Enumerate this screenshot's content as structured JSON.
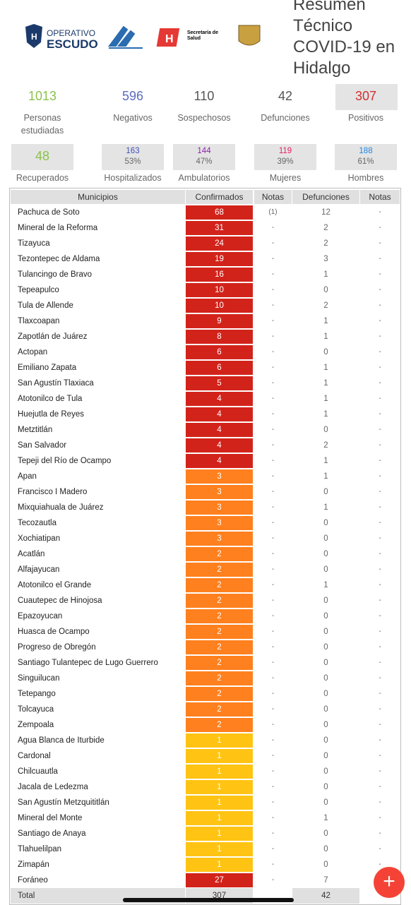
{
  "header": {
    "title_lines": [
      "Resumen",
      "Técnico",
      "COVID-19 en",
      "Hidalgo"
    ],
    "logos": {
      "operativo": "OPERATIVO",
      "escudo": "ESCUDO",
      "secretaria": "Secretaría de",
      "salud": "Salud"
    }
  },
  "summary": [
    {
      "value": "1013",
      "label": "Personas estudiadas",
      "color": "#8bc34a"
    },
    {
      "value": "596",
      "label": "Negativos",
      "color": "#5c6bc0"
    },
    {
      "value": "110",
      "label": "Sospechosos",
      "color": "#555"
    },
    {
      "value": "42",
      "label": "Defunciones",
      "color": "#555"
    },
    {
      "value": "307",
      "label": "Positivos",
      "color": "#d32f2f"
    }
  ],
  "breakdown": [
    {
      "value": "48",
      "label": "Recuperados",
      "color": "#8bc34a"
    },
    {
      "value": "163",
      "pct": "53%",
      "label": "Hospitalizados",
      "color": "#3f51b5"
    },
    {
      "value": "144",
      "pct": "47%",
      "label": "Ambulatorios",
      "color": "#8e24aa"
    },
    {
      "value": "119",
      "pct": "39%",
      "label": "Mujeres",
      "color": "#e91e63"
    },
    {
      "value": "188",
      "pct": "61%",
      "label": "Hombres",
      "color": "#1e88e5"
    }
  ],
  "table": {
    "headers": [
      "Municipios",
      "Confirmados",
      "Notas",
      "Defunciones",
      "Notas"
    ],
    "rows": [
      [
        "Pachuca de Soto",
        "68",
        "(1)",
        "12",
        "-"
      ],
      [
        "Mineral de la Reforma",
        "31",
        "-",
        "2",
        "-"
      ],
      [
        "Tizayuca",
        "24",
        "-",
        "2",
        "-"
      ],
      [
        "Tezontepec de Aldama",
        "19",
        "-",
        "3",
        "-"
      ],
      [
        "Tulancingo de Bravo",
        "16",
        "-",
        "1",
        "-"
      ],
      [
        "Tepeapulco",
        "10",
        "-",
        "0",
        "-"
      ],
      [
        "Tula de Allende",
        "10",
        "-",
        "2",
        "-"
      ],
      [
        "Tlaxcoapan",
        "9",
        "-",
        "1",
        "-"
      ],
      [
        "Zapotlán de Juárez",
        "8",
        "-",
        "1",
        "-"
      ],
      [
        "Actopan",
        "6",
        "-",
        "0",
        "-"
      ],
      [
        "Emiliano Zapata",
        "6",
        "-",
        "1",
        "-"
      ],
      [
        "San Agustín Tlaxiaca",
        "5",
        "-",
        "1",
        "-"
      ],
      [
        "Atotonilco de Tula",
        "4",
        "-",
        "1",
        "-"
      ],
      [
        "Huejutla de Reyes",
        "4",
        "-",
        "1",
        "-"
      ],
      [
        "Metztitlán",
        "4",
        "-",
        "0",
        "-"
      ],
      [
        "San Salvador",
        "4",
        "-",
        "2",
        "-"
      ],
      [
        "Tepeji del Río de Ocampo",
        "4",
        "-",
        "1",
        "-"
      ],
      [
        "Apan",
        "3",
        "-",
        "1",
        "-"
      ],
      [
        "Francisco I Madero",
        "3",
        "-",
        "0",
        "-"
      ],
      [
        "Mixquiahuala de Juárez",
        "3",
        "-",
        "1",
        "-"
      ],
      [
        "Tecozautla",
        "3",
        "-",
        "0",
        "-"
      ],
      [
        "Xochiatipan",
        "3",
        "-",
        "0",
        "-"
      ],
      [
        "Acatlán",
        "2",
        "-",
        "0",
        "-"
      ],
      [
        "Alfajayucan",
        "2",
        "-",
        "0",
        "-"
      ],
      [
        "Atotonilco el Grande",
        "2",
        "-",
        "1",
        "-"
      ],
      [
        "Cuautepec de Hinojosa",
        "2",
        "-",
        "0",
        "-"
      ],
      [
        "Epazoyucan",
        "2",
        "-",
        "0",
        "-"
      ],
      [
        "Huasca de Ocampo",
        "2",
        "-",
        "0",
        "-"
      ],
      [
        "Progreso de Obregón",
        "2",
        "-",
        "0",
        "-"
      ],
      [
        "Santiago Tulantepec de Lugo Guerrero",
        "2",
        "-",
        "0",
        "-"
      ],
      [
        "Singuilucan",
        "2",
        "-",
        "0",
        "-"
      ],
      [
        "Tetepango",
        "2",
        "-",
        "0",
        "-"
      ],
      [
        "Tolcayuca",
        "2",
        "-",
        "0",
        "-"
      ],
      [
        "Zempoala",
        "2",
        "-",
        "0",
        "-"
      ],
      [
        "Agua Blanca de Iturbide",
        "1",
        "-",
        "0",
        "-"
      ],
      [
        "Cardonal",
        "1",
        "-",
        "0",
        "-"
      ],
      [
        "Chilcuautla",
        "1",
        "-",
        "0",
        "-"
      ],
      [
        "Jacala de Ledezma",
        "1",
        "-",
        "0",
        "-"
      ],
      [
        "San Agustín Metzquititlán",
        "1",
        "-",
        "0",
        "-"
      ],
      [
        "Mineral del Monte",
        "1",
        "-",
        "1",
        "-"
      ],
      [
        "Santiago de Anaya",
        "1",
        "-",
        "0",
        "-"
      ],
      [
        "Tlahuelilpan",
        "1",
        "-",
        "0",
        "-"
      ],
      [
        "Zimapán",
        "1",
        "-",
        "0",
        "-"
      ],
      [
        "Foráneo",
        "27",
        "-",
        "7",
        "-"
      ]
    ],
    "row_colors": [
      "#d0180f",
      "#d0180f",
      "#d0180f",
      "#d0180f",
      "#d0180f",
      "#d0180f",
      "#d0180f",
      "#d0180f",
      "#d0180f",
      "#d0180f",
      "#d0180f",
      "#d0180f",
      "#d0180f",
      "#d0180f",
      "#d0180f",
      "#d0180f",
      "#d0180f",
      "#ff7a12",
      "#ff7a12",
      "#ff7a12",
      "#ff7a12",
      "#ff7a12",
      "#ff7a12",
      "#ff7a12",
      "#ff7a12",
      "#ff7a12",
      "#ff7a12",
      "#ff7a12",
      "#ff7a12",
      "#ff7a12",
      "#ff7a12",
      "#ff7a12",
      "#ff7a12",
      "#ff7a12",
      "#ffc107",
      "#ffc107",
      "#ffc107",
      "#ffc107",
      "#ffc107",
      "#ffc107",
      "#ffc107",
      "#ffc107",
      "#ffc107",
      "#d0180f"
    ],
    "total": [
      "Total",
      "307",
      "42"
    ]
  }
}
